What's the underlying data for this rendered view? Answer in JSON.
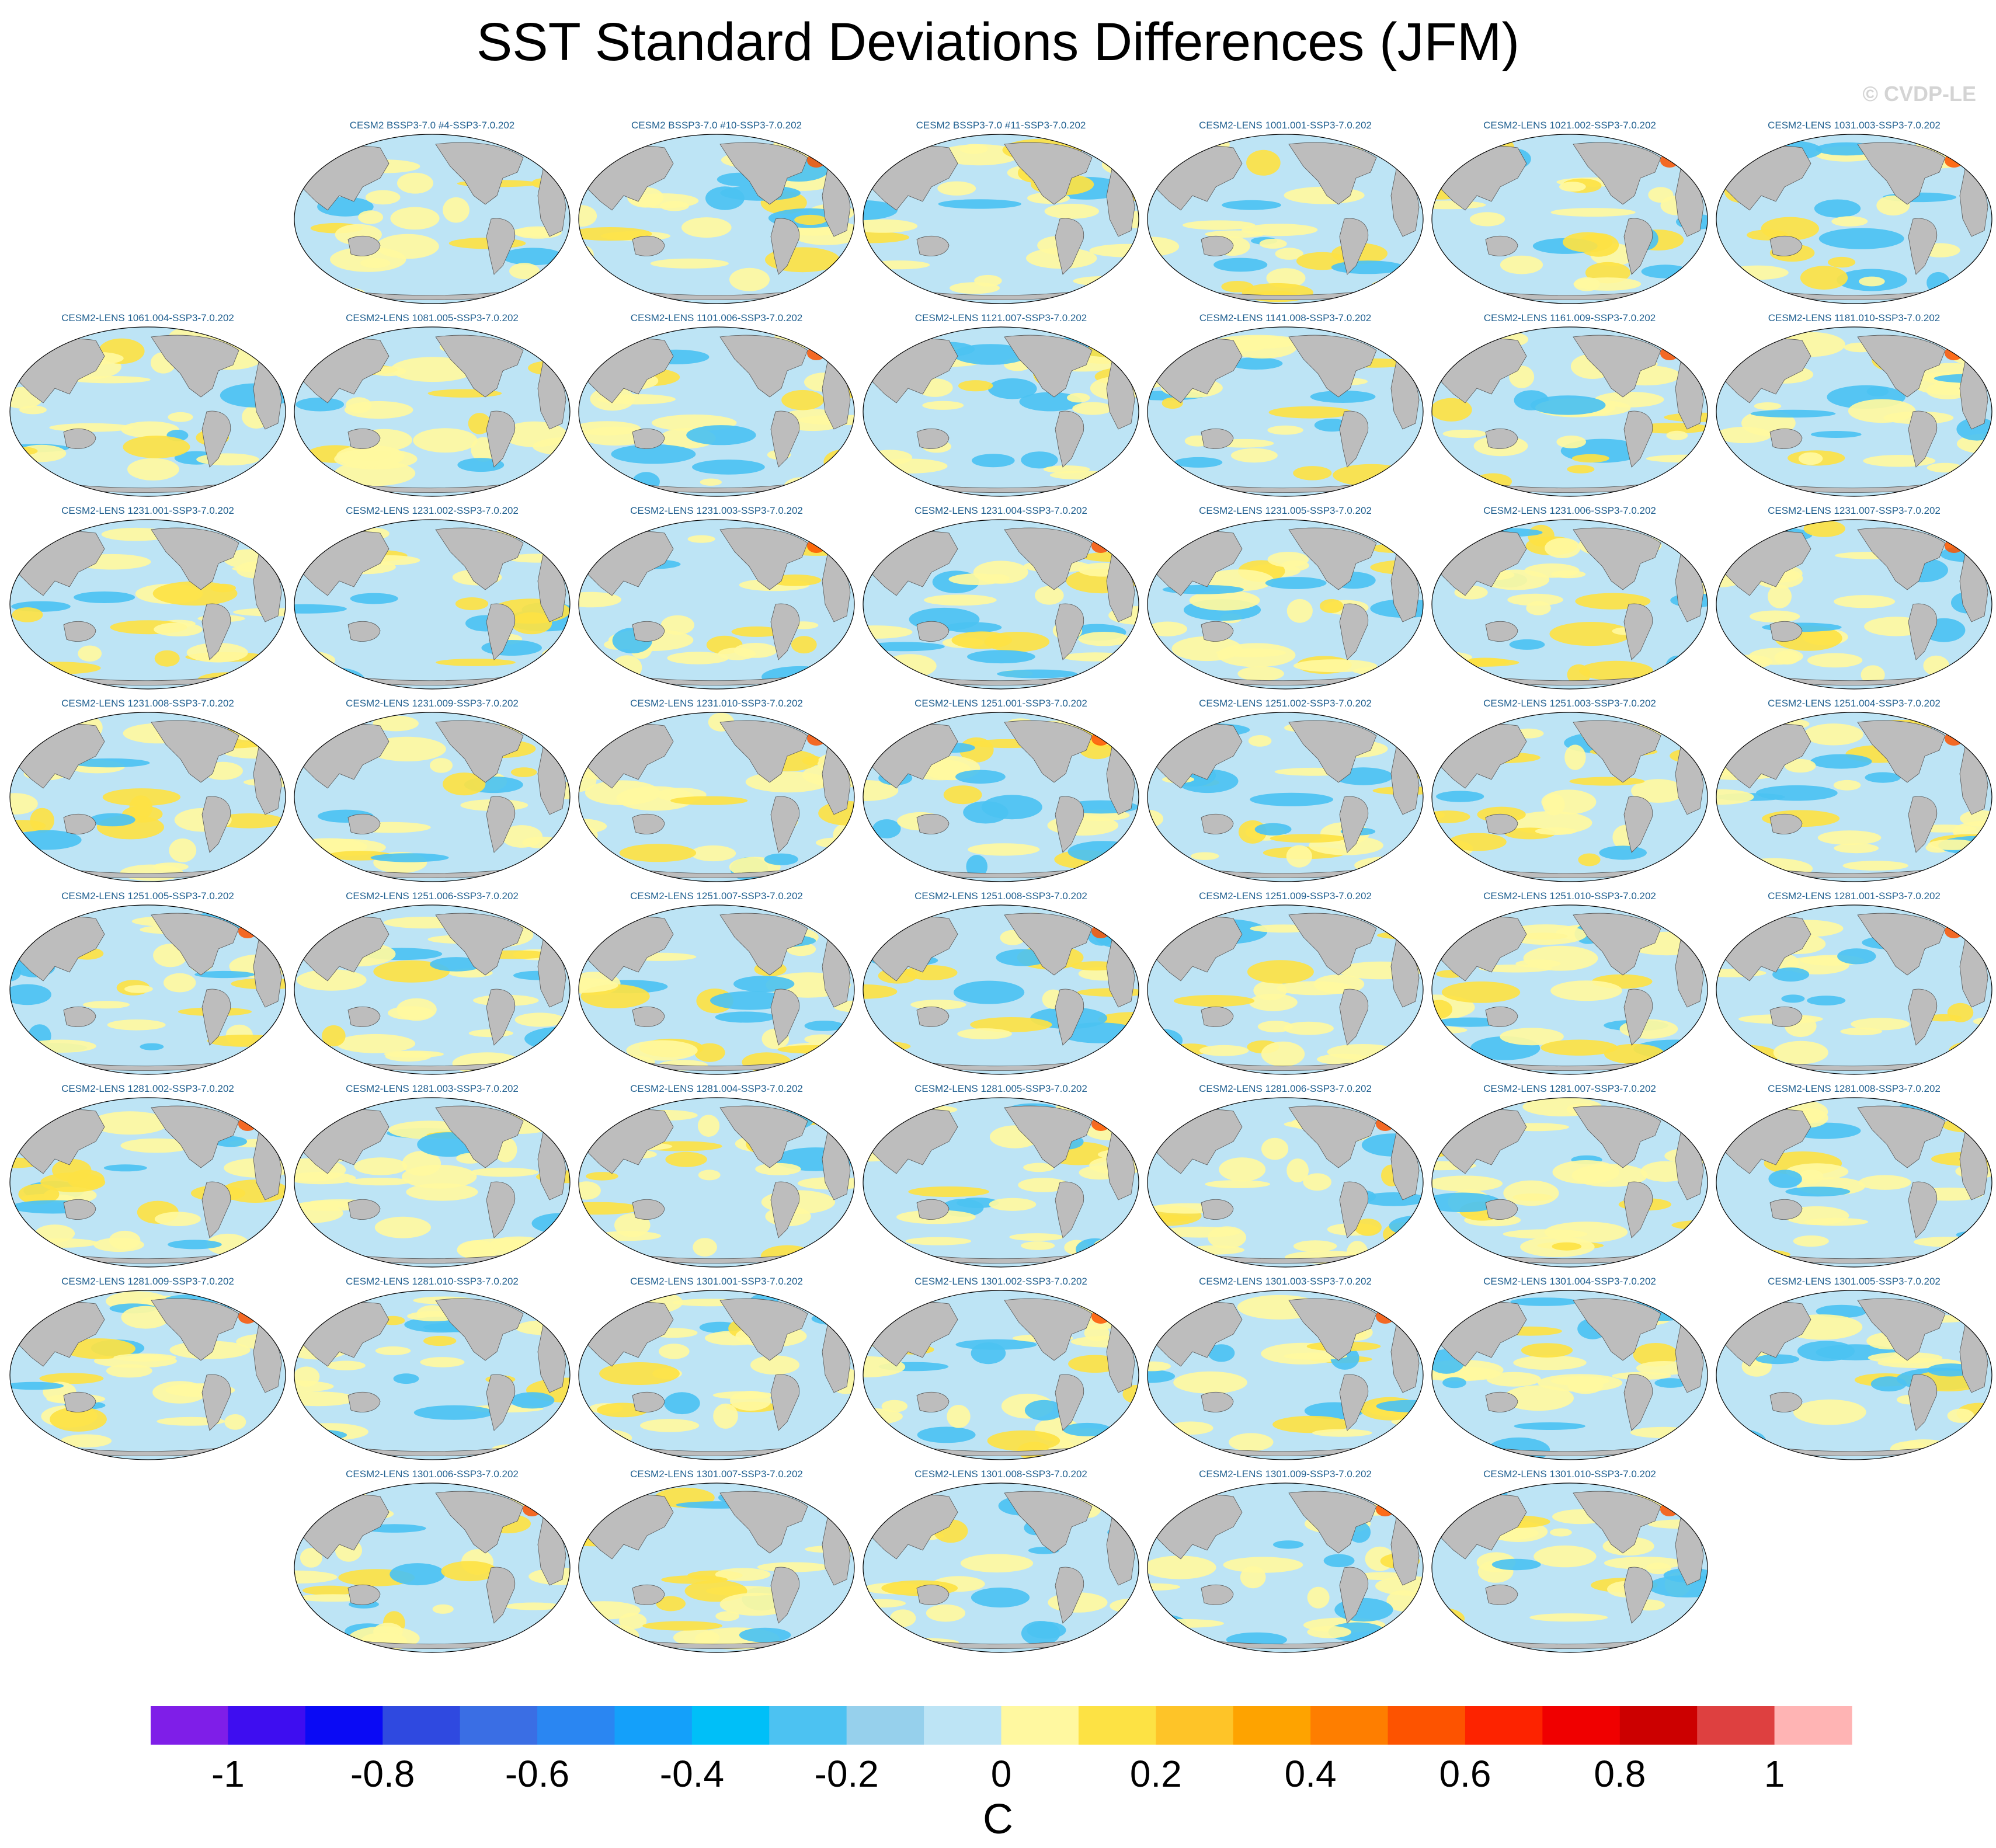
{
  "title": "SST Standard Deviations Differences (JFM)",
  "watermark": "© CVDP-LE",
  "panels": [
    {
      "label": "CESM2 BSSP3-7.0 #4-SSP3-7.0.202"
    },
    {
      "label": "CESM2 BSSP3-7.0 #10-SSP3-7.0.202"
    },
    {
      "label": "CESM2 BSSP3-7.0 #11-SSP3-7.0.202"
    },
    {
      "label": "CESM2-LENS 1001.001-SSP3-7.0.202"
    },
    {
      "label": "CESM2-LENS 1021.002-SSP3-7.0.202"
    },
    {
      "label": "CESM2-LENS 1031.003-SSP3-7.0.202"
    },
    {
      "label": "CESM2-LENS 1061.004-SSP3-7.0.202"
    },
    {
      "label": "CESM2-LENS 1081.005-SSP3-7.0.202"
    },
    {
      "label": "CESM2-LENS 1101.006-SSP3-7.0.202"
    },
    {
      "label": "CESM2-LENS 1121.007-SSP3-7.0.202"
    },
    {
      "label": "CESM2-LENS 1141.008-SSP3-7.0.202"
    },
    {
      "label": "CESM2-LENS 1161.009-SSP3-7.0.202"
    },
    {
      "label": "CESM2-LENS 1181.010-SSP3-7.0.202"
    },
    {
      "label": "CESM2-LENS 1231.001-SSP3-7.0.202"
    },
    {
      "label": "CESM2-LENS 1231.002-SSP3-7.0.202"
    },
    {
      "label": "CESM2-LENS 1231.003-SSP3-7.0.202"
    },
    {
      "label": "CESM2-LENS 1231.004-SSP3-7.0.202"
    },
    {
      "label": "CESM2-LENS 1231.005-SSP3-7.0.202"
    },
    {
      "label": "CESM2-LENS 1231.006-SSP3-7.0.202"
    },
    {
      "label": "CESM2-LENS 1231.007-SSP3-7.0.202"
    },
    {
      "label": "CESM2-LENS 1231.008-SSP3-7.0.202"
    },
    {
      "label": "CESM2-LENS 1231.009-SSP3-7.0.202"
    },
    {
      "label": "CESM2-LENS 1231.010-SSP3-7.0.202"
    },
    {
      "label": "CESM2-LENS 1251.001-SSP3-7.0.202"
    },
    {
      "label": "CESM2-LENS 1251.002-SSP3-7.0.202"
    },
    {
      "label": "CESM2-LENS 1251.003-SSP3-7.0.202"
    },
    {
      "label": "CESM2-LENS 1251.004-SSP3-7.0.202"
    },
    {
      "label": "CESM2-LENS 1251.005-SSP3-7.0.202"
    },
    {
      "label": "CESM2-LENS 1251.006-SSP3-7.0.202"
    },
    {
      "label": "CESM2-LENS 1251.007-SSP3-7.0.202"
    },
    {
      "label": "CESM2-LENS 1251.008-SSP3-7.0.202"
    },
    {
      "label": "CESM2-LENS 1251.009-SSP3-7.0.202"
    },
    {
      "label": "CESM2-LENS 1251.010-SSP3-7.0.202"
    },
    {
      "label": "CESM2-LENS 1281.001-SSP3-7.0.202"
    },
    {
      "label": "CESM2-LENS 1281.002-SSP3-7.0.202"
    },
    {
      "label": "CESM2-LENS 1281.003-SSP3-7.0.202"
    },
    {
      "label": "CESM2-LENS 1281.004-SSP3-7.0.202"
    },
    {
      "label": "CESM2-LENS 1281.005-SSP3-7.0.202"
    },
    {
      "label": "CESM2-LENS 1281.006-SSP3-7.0.202"
    },
    {
      "label": "CESM2-LENS 1281.007-SSP3-7.0.202"
    },
    {
      "label": "CESM2-LENS 1281.008-SSP3-7.0.202"
    },
    {
      "label": "CESM2-LENS 1281.009-SSP3-7.0.202"
    },
    {
      "label": "CESM2-LENS 1281.010-SSP3-7.0.202"
    },
    {
      "label": "CESM2-LENS 1301.001-SSP3-7.0.202"
    },
    {
      "label": "CESM2-LENS 1301.002-SSP3-7.0.202"
    },
    {
      "label": "CESM2-LENS 1301.003-SSP3-7.0.202"
    },
    {
      "label": "CESM2-LENS 1301.004-SSP3-7.0.202"
    },
    {
      "label": "CESM2-LENS 1301.005-SSP3-7.0.202"
    },
    {
      "label": "CESM2-LENS 1301.006-SSP3-7.0.202"
    },
    {
      "label": "CESM2-LENS 1301.007-SSP3-7.0.202"
    },
    {
      "label": "CESM2-LENS 1301.008-SSP3-7.0.202"
    },
    {
      "label": "CESM2-LENS 1301.009-SSP3-7.0.202"
    },
    {
      "label": "CESM2-LENS 1301.010-SSP3-7.0.202"
    }
  ],
  "colorbar": {
    "colors": [
      "#7f1ee8",
      "#3e0df0",
      "#0a0af5",
      "#2f49e0",
      "#3a6ee4",
      "#2a86f2",
      "#14a0fa",
      "#00bff8",
      "#4cc2f2",
      "#96d0ec",
      "#bde4f5",
      "#fff8a0",
      "#fde244",
      "#fec428",
      "#fea300",
      "#fe7e00",
      "#fd5300",
      "#fd2300",
      "#f00000",
      "#cc0000",
      "#de4040",
      "#ffb4b4"
    ],
    "tick_labels": [
      "-1",
      "-0.8",
      "-0.6",
      "-0.4",
      "-0.2",
      "0",
      "0.2",
      "0.4",
      "0.6",
      "0.8",
      "1"
    ],
    "unit": "C"
  },
  "map_colors": {
    "ocean_neutral": "#bde4f5",
    "land": "#bdbdbd",
    "positive": "#fff8a0",
    "positive_strong": "#fde244",
    "negative_strong": "#4cc2f2",
    "hotspot": "#fd5300"
  }
}
